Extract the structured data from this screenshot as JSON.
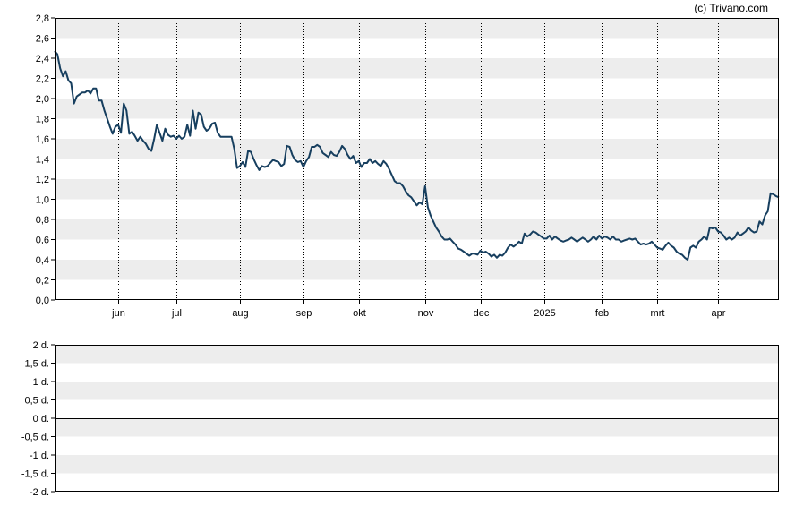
{
  "credit": "(c) Trivano.com",
  "chart_data": [
    {
      "type": "line",
      "ylim": [
        0,
        2.8
      ],
      "y_ticks": [
        "0,0",
        "0,2",
        "0,4",
        "0,6",
        "0,8",
        "1,0",
        "1,2",
        "1,4",
        "1,6",
        "1,8",
        "2,0",
        "2,2",
        "2,4",
        "2,6",
        "2,8"
      ],
      "month_labels": [
        {
          "label": "jun",
          "t": 23
        },
        {
          "label": "jul",
          "t": 44
        },
        {
          "label": "aug",
          "t": 67
        },
        {
          "label": "sep",
          "t": 90
        },
        {
          "label": "okt",
          "t": 110
        },
        {
          "label": "nov",
          "t": 134
        },
        {
          "label": "dec",
          "t": 154
        },
        {
          "label": "2025",
          "t": 177
        },
        {
          "label": "feb",
          "t": 198
        },
        {
          "label": "mrt",
          "t": 218
        },
        {
          "label": "apr",
          "t": 240
        }
      ],
      "t_range": [
        0,
        262
      ],
      "grid": "horizontal bands, dotted monthly verticals",
      "color": "#173f5f",
      "series": [
        {
          "points": [
            [
              0,
              2.47
            ],
            [
              1,
              2.44
            ],
            [
              2,
              2.3
            ],
            [
              3,
              2.22
            ],
            [
              4,
              2.27
            ],
            [
              5,
              2.18
            ],
            [
              6,
              2.15
            ],
            [
              7,
              1.95
            ],
            [
              8,
              2.02
            ],
            [
              9,
              2.04
            ],
            [
              10,
              2.06
            ],
            [
              11,
              2.06
            ],
            [
              12,
              2.08
            ],
            [
              13,
              2.05
            ],
            [
              14,
              2.1
            ],
            [
              15,
              2.1
            ],
            [
              16,
              1.98
            ],
            [
              17,
              1.98
            ],
            [
              18,
              1.88
            ],
            [
              19,
              1.8
            ],
            [
              20,
              1.72
            ],
            [
              21,
              1.65
            ],
            [
              22,
              1.72
            ],
            [
              23,
              1.74
            ],
            [
              24,
              1.66
            ],
            [
              25,
              1.95
            ],
            [
              26,
              1.88
            ],
            [
              27,
              1.65
            ],
            [
              28,
              1.67
            ],
            [
              29,
              1.63
            ],
            [
              30,
              1.58
            ],
            [
              31,
              1.62
            ],
            [
              32,
              1.58
            ],
            [
              33,
              1.55
            ],
            [
              34,
              1.5
            ],
            [
              35,
              1.48
            ],
            [
              36,
              1.6
            ],
            [
              37,
              1.74
            ],
            [
              38,
              1.66
            ],
            [
              39,
              1.58
            ],
            [
              40,
              1.7
            ],
            [
              41,
              1.64
            ],
            [
              42,
              1.62
            ],
            [
              43,
              1.63
            ],
            [
              44,
              1.6
            ],
            [
              45,
              1.63
            ],
            [
              46,
              1.6
            ],
            [
              47,
              1.62
            ],
            [
              48,
              1.74
            ],
            [
              49,
              1.63
            ],
            [
              50,
              1.88
            ],
            [
              51,
              1.7
            ],
            [
              52,
              1.86
            ],
            [
              53,
              1.84
            ],
            [
              54,
              1.72
            ],
            [
              55,
              1.68
            ],
            [
              56,
              1.7
            ],
            [
              57,
              1.75
            ],
            [
              58,
              1.76
            ],
            [
              59,
              1.66
            ],
            [
              60,
              1.62
            ],
            [
              61,
              1.62
            ],
            [
              62,
              1.62
            ],
            [
              63,
              1.62
            ],
            [
              64,
              1.62
            ],
            [
              65,
              1.5
            ],
            [
              66,
              1.31
            ],
            [
              67,
              1.33
            ],
            [
              68,
              1.37
            ],
            [
              69,
              1.32
            ],
            [
              70,
              1.48
            ],
            [
              71,
              1.47
            ],
            [
              72,
              1.4
            ],
            [
              73,
              1.34
            ],
            [
              74,
              1.29
            ],
            [
              75,
              1.33
            ],
            [
              76,
              1.32
            ],
            [
              77,
              1.33
            ],
            [
              78,
              1.36
            ],
            [
              79,
              1.39
            ],
            [
              80,
              1.38
            ],
            [
              81,
              1.37
            ],
            [
              82,
              1.33
            ],
            [
              83,
              1.35
            ],
            [
              84,
              1.53
            ],
            [
              85,
              1.52
            ],
            [
              86,
              1.44
            ],
            [
              87,
              1.39
            ],
            [
              88,
              1.37
            ],
            [
              89,
              1.38
            ],
            [
              90,
              1.32
            ],
            [
              91,
              1.38
            ],
            [
              92,
              1.42
            ],
            [
              93,
              1.52
            ],
            [
              94,
              1.52
            ],
            [
              95,
              1.54
            ],
            [
              96,
              1.52
            ],
            [
              97,
              1.46
            ],
            [
              98,
              1.44
            ],
            [
              99,
              1.42
            ],
            [
              100,
              1.47
            ],
            [
              101,
              1.44
            ],
            [
              102,
              1.43
            ],
            [
              103,
              1.47
            ],
            [
              104,
              1.53
            ],
            [
              105,
              1.5
            ],
            [
              106,
              1.44
            ],
            [
              107,
              1.4
            ],
            [
              108,
              1.43
            ],
            [
              109,
              1.36
            ],
            [
              110,
              1.38
            ],
            [
              111,
              1.32
            ],
            [
              112,
              1.36
            ],
            [
              113,
              1.36
            ],
            [
              114,
              1.4
            ],
            [
              115,
              1.36
            ],
            [
              116,
              1.38
            ],
            [
              117,
              1.35
            ],
            [
              118,
              1.33
            ],
            [
              119,
              1.38
            ],
            [
              120,
              1.35
            ],
            [
              121,
              1.3
            ],
            [
              122,
              1.24
            ],
            [
              123,
              1.18
            ],
            [
              124,
              1.16
            ],
            [
              125,
              1.16
            ],
            [
              126,
              1.13
            ],
            [
              127,
              1.08
            ],
            [
              128,
              1.04
            ],
            [
              129,
              1.02
            ],
            [
              130,
              0.98
            ],
            [
              131,
              0.94
            ],
            [
              132,
              0.97
            ],
            [
              133,
              0.95
            ],
            [
              134,
              1.13
            ],
            [
              135,
              0.92
            ],
            [
              136,
              0.84
            ],
            [
              137,
              0.78
            ],
            [
              138,
              0.72
            ],
            [
              139,
              0.68
            ],
            [
              140,
              0.63
            ],
            [
              141,
              0.6
            ],
            [
              142,
              0.6
            ],
            [
              143,
              0.61
            ],
            [
              144,
              0.58
            ],
            [
              145,
              0.55
            ],
            [
              146,
              0.51
            ],
            [
              147,
              0.5
            ],
            [
              148,
              0.48
            ],
            [
              149,
              0.46
            ],
            [
              150,
              0.44
            ],
            [
              151,
              0.46
            ],
            [
              152,
              0.46
            ],
            [
              153,
              0.45
            ],
            [
              154,
              0.49
            ],
            [
              155,
              0.47
            ],
            [
              156,
              0.48
            ],
            [
              157,
              0.46
            ],
            [
              158,
              0.43
            ],
            [
              159,
              0.45
            ],
            [
              160,
              0.42
            ],
            [
              161,
              0.45
            ],
            [
              162,
              0.44
            ],
            [
              163,
              0.47
            ],
            [
              164,
              0.52
            ],
            [
              165,
              0.55
            ],
            [
              166,
              0.53
            ],
            [
              167,
              0.55
            ],
            [
              168,
              0.58
            ],
            [
              169,
              0.56
            ],
            [
              170,
              0.66
            ],
            [
              171,
              0.63
            ],
            [
              172,
              0.65
            ],
            [
              173,
              0.68
            ],
            [
              174,
              0.67
            ],
            [
              175,
              0.65
            ],
            [
              176,
              0.63
            ],
            [
              177,
              0.61
            ],
            [
              178,
              0.61
            ],
            [
              179,
              0.64
            ],
            [
              180,
              0.6
            ],
            [
              181,
              0.63
            ],
            [
              182,
              0.61
            ],
            [
              183,
              0.59
            ],
            [
              184,
              0.58
            ],
            [
              185,
              0.59
            ],
            [
              186,
              0.6
            ],
            [
              187,
              0.62
            ],
            [
              188,
              0.6
            ],
            [
              189,
              0.58
            ],
            [
              190,
              0.6
            ],
            [
              191,
              0.62
            ],
            [
              192,
              0.6
            ],
            [
              193,
              0.58
            ],
            [
              194,
              0.6
            ],
            [
              195,
              0.63
            ],
            [
              196,
              0.6
            ],
            [
              197,
              0.64
            ],
            [
              198,
              0.61
            ],
            [
              199,
              0.63
            ],
            [
              200,
              0.62
            ],
            [
              201,
              0.6
            ],
            [
              202,
              0.63
            ],
            [
              203,
              0.6
            ],
            [
              204,
              0.6
            ],
            [
              205,
              0.58
            ],
            [
              206,
              0.59
            ],
            [
              207,
              0.6
            ],
            [
              208,
              0.61
            ],
            [
              209,
              0.6
            ],
            [
              210,
              0.61
            ],
            [
              211,
              0.58
            ],
            [
              212,
              0.55
            ],
            [
              213,
              0.56
            ],
            [
              214,
              0.55
            ],
            [
              215,
              0.56
            ],
            [
              216,
              0.58
            ],
            [
              217,
              0.55
            ],
            [
              218,
              0.52
            ],
            [
              219,
              0.51
            ],
            [
              220,
              0.5
            ],
            [
              221,
              0.54
            ],
            [
              222,
              0.57
            ],
            [
              223,
              0.54
            ],
            [
              224,
              0.52
            ],
            [
              225,
              0.48
            ],
            [
              226,
              0.46
            ],
            [
              227,
              0.45
            ],
            [
              228,
              0.42
            ],
            [
              229,
              0.4
            ],
            [
              230,
              0.52
            ],
            [
              231,
              0.54
            ],
            [
              232,
              0.52
            ],
            [
              233,
              0.58
            ],
            [
              234,
              0.6
            ],
            [
              235,
              0.63
            ],
            [
              236,
              0.6
            ],
            [
              237,
              0.72
            ],
            [
              238,
              0.71
            ],
            [
              239,
              0.72
            ],
            [
              240,
              0.68
            ],
            [
              241,
              0.67
            ],
            [
              242,
              0.64
            ],
            [
              243,
              0.6
            ],
            [
              244,
              0.62
            ],
            [
              245,
              0.6
            ],
            [
              246,
              0.62
            ],
            [
              247,
              0.67
            ],
            [
              248,
              0.64
            ],
            [
              249,
              0.66
            ],
            [
              250,
              0.68
            ],
            [
              251,
              0.72
            ],
            [
              252,
              0.69
            ],
            [
              253,
              0.67
            ],
            [
              254,
              0.68
            ],
            [
              255,
              0.78
            ],
            [
              256,
              0.75
            ],
            [
              257,
              0.84
            ],
            [
              258,
              0.88
            ],
            [
              259,
              1.06
            ],
            [
              260,
              1.05
            ],
            [
              261,
              1.03
            ],
            [
              262,
              1.02
            ]
          ]
        }
      ]
    },
    {
      "type": "line",
      "ylim": [
        -2,
        2
      ],
      "y_ticks": [
        "-2 d.",
        "-1,5 d.",
        "-1 d.",
        "-0,5 d.",
        "0 d.",
        "0,5 d.",
        "1 d.",
        "1,5 d.",
        "2 d."
      ],
      "grid": "horizontal bands, zero line",
      "series": []
    }
  ]
}
